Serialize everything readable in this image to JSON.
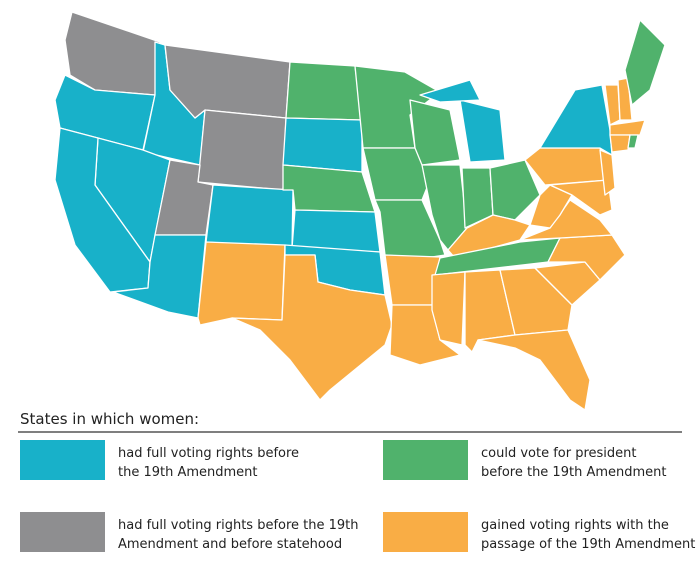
{
  "legend": {
    "title": "States in which women:",
    "items": [
      {
        "lines": [
          "had full voting rights before",
          "the 19th Amendment"
        ],
        "color": "#18b1c9"
      },
      {
        "lines": [
          "could vote for president",
          "before the 19th Amendment"
        ],
        "color": "#50b26c"
      },
      {
        "lines": [
          "had full voting rights before the 19th",
          "Amendment and before statehood"
        ],
        "color": "#8e8e90"
      },
      {
        "lines": [
          "gained voting rights with the",
          "passage of the 19th Amendment"
        ],
        "color": "#f9ad45"
      }
    ]
  }
}
